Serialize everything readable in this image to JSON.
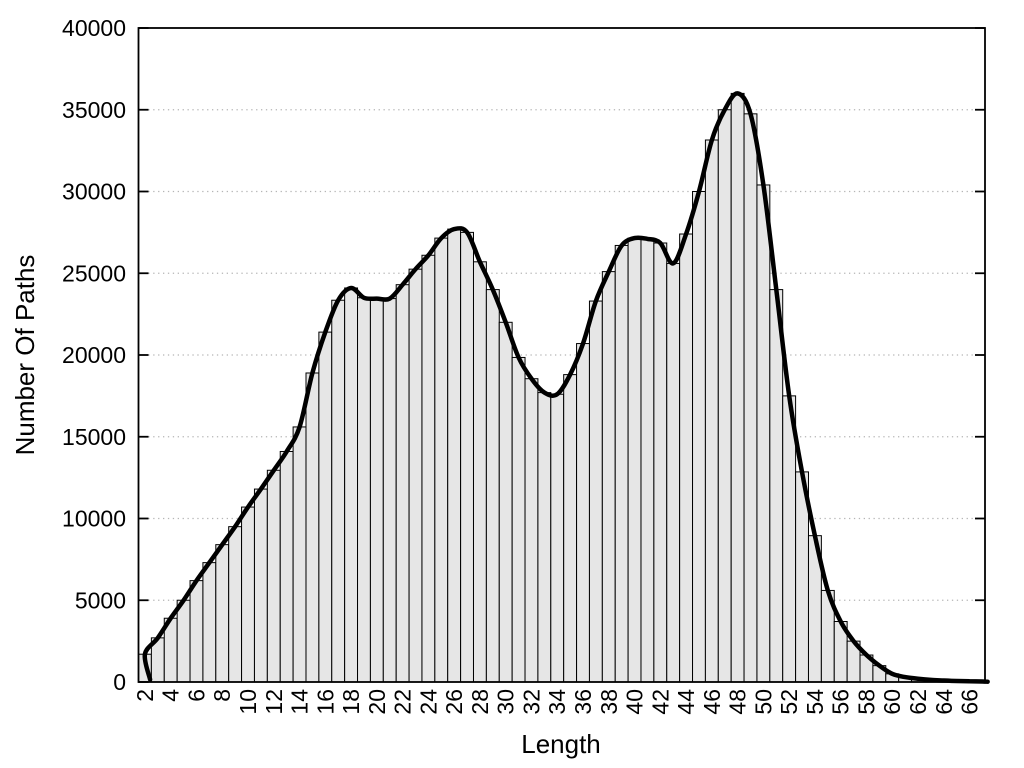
{
  "page": {
    "background": "#ffffff"
  },
  "chart_data": {
    "type": "bar",
    "subtype": "histogram-with-smooth-curve-overlay",
    "title": "",
    "xlabel": "Length",
    "ylabel": "Number Of Paths",
    "x": [
      2,
      3,
      4,
      5,
      6,
      7,
      8,
      9,
      10,
      11,
      12,
      13,
      14,
      15,
      16,
      17,
      18,
      19,
      20,
      21,
      22,
      23,
      24,
      25,
      26,
      27,
      28,
      29,
      30,
      31,
      32,
      33,
      34,
      35,
      36,
      37,
      38,
      39,
      40,
      41,
      42,
      43,
      44,
      45,
      46,
      47,
      48,
      49,
      50,
      51,
      52,
      53,
      54,
      55,
      56,
      57,
      58,
      59,
      60,
      61,
      62,
      63,
      64,
      65,
      66,
      67
    ],
    "values": [
      1700,
      2700,
      3900,
      5000,
      6200,
      7300,
      8400,
      9500,
      10700,
      11800,
      12950,
      14100,
      15600,
      18900,
      21400,
      23350,
      24100,
      23500,
      23450,
      23450,
      24300,
      25250,
      26100,
      27150,
      27700,
      27500,
      25700,
      24000,
      22000,
      19850,
      18550,
      17700,
      17600,
      18800,
      20700,
      23300,
      25100,
      26700,
      27150,
      27100,
      26850,
      25600,
      27400,
      30000,
      33150,
      35000,
      36000,
      34750,
      30400,
      24000,
      17500,
      12850,
      8950,
      5600,
      3700,
      2500,
      1650,
      1000,
      500,
      300,
      200,
      130,
      90,
      60,
      45,
      30
    ],
    "xticks": [
      2,
      4,
      6,
      8,
      10,
      12,
      14,
      16,
      18,
      20,
      22,
      24,
      26,
      28,
      30,
      32,
      34,
      36,
      38,
      40,
      42,
      44,
      46,
      48,
      50,
      52,
      54,
      56,
      58,
      60,
      62,
      64,
      66
    ],
    "yticks": [
      0,
      5000,
      10000,
      15000,
      20000,
      25000,
      30000,
      35000,
      40000
    ],
    "xlim": [
      1.5,
      67.2
    ],
    "ylim": [
      0,
      40000
    ],
    "grid": "horizontal-dotted",
    "legend": "none",
    "bar_width_units": 1,
    "colors": {
      "bar_fill": "#e6e6e6",
      "bar_stroke": "#000000",
      "curve": "#000000",
      "grid": "#b5b5b5",
      "text": "#000000",
      "frame": "#000000",
      "background": "#ffffff"
    }
  }
}
